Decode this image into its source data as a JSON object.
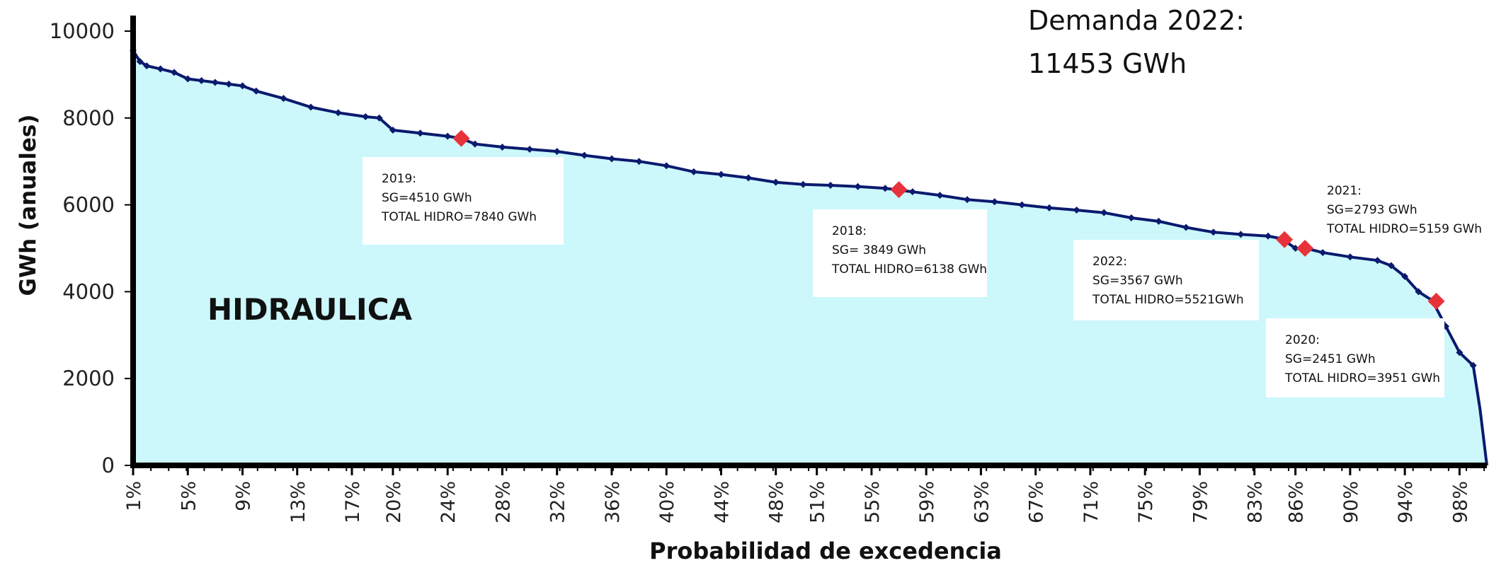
{
  "chart_data": {
    "type": "area",
    "title": "",
    "xlabel": "Probabilidad de excedencia",
    "ylabel": "GWh (anuales)",
    "ylim": [
      0,
      10000
    ],
    "xlim": [
      1,
      100
    ],
    "yticks": [
      0,
      2000,
      4000,
      6000,
      8000,
      10000
    ],
    "xtick_labels": [
      "1%",
      "5%",
      "9%",
      "13%",
      "17%",
      "20%",
      "24%",
      "28%",
      "32%",
      "36%",
      "40%",
      "44%",
      "48%",
      "51%",
      "55%",
      "59%",
      "63%",
      "67%",
      "71%",
      "75%",
      "79%",
      "83%",
      "86%",
      "90%",
      "94%",
      "98%"
    ],
    "xtick_values": [
      1,
      5,
      9,
      13,
      17,
      20,
      24,
      28,
      32,
      36,
      40,
      44,
      48,
      51,
      55,
      59,
      63,
      67,
      71,
      75,
      79,
      83,
      86,
      90,
      94,
      98
    ],
    "fill_label": "HIDRAULICA",
    "demand_line1": "Demanda 2022:",
    "demand_line2": "11453 GWh",
    "fill_color": "#ccf7fb",
    "line_color": "#0a1a6e",
    "marker_color": "#e8323a",
    "series": [
      {
        "x": [
          1,
          1.5,
          2,
          3,
          4,
          5,
          6,
          7,
          8,
          9,
          10,
          12,
          14,
          16,
          18,
          19,
          20,
          22,
          24,
          25,
          26,
          28,
          30,
          32,
          34,
          36,
          38,
          40,
          42,
          44,
          46,
          48,
          50,
          52,
          54,
          56,
          58,
          60,
          62,
          64,
          66,
          68,
          70,
          72,
          74,
          76,
          78,
          80,
          82,
          84,
          85,
          86,
          87,
          88,
          90,
          92,
          93,
          94,
          95,
          96,
          97,
          98,
          99,
          99.5,
          100
        ],
        "y": [
          9550,
          9300,
          9200,
          9130,
          9050,
          8900,
          8860,
          8820,
          8780,
          8740,
          8620,
          8450,
          8250,
          8120,
          8030,
          8000,
          7720,
          7650,
          7580,
          7530,
          7400,
          7330,
          7280,
          7230,
          7140,
          7060,
          7000,
          6900,
          6760,
          6700,
          6620,
          6520,
          6470,
          6450,
          6420,
          6380,
          6300,
          6220,
          6120,
          6070,
          6000,
          5930,
          5880,
          5820,
          5700,
          5620,
          5480,
          5370,
          5320,
          5280,
          5220,
          5000,
          4980,
          4900,
          4800,
          4720,
          4600,
          4350,
          4000,
          3800,
          3200,
          2600,
          2300,
          1300,
          0
        ]
      }
    ],
    "highlights": [
      {
        "x": 25,
        "y": 7530,
        "title": "2019:",
        "line2": "SG=4510 GWh",
        "line3": "TOTAL HIDRO=7840 GWh"
      },
      {
        "x": 57,
        "y": 6350,
        "title": "2018:",
        "line2": "SG= 3849 GWh",
        "line3": "TOTAL HIDRO=6138 GWh"
      },
      {
        "x": 85.2,
        "y": 5200,
        "title": "2022:",
        "line2": "SG=3567 GWh",
        "line3": "TOTAL HIDRO=5521GWh"
      },
      {
        "x": 86.7,
        "y": 5000,
        "title": "2021:",
        "line2": "SG=2793 GWh",
        "line3": "TOTAL HIDRO=5159 GWh"
      },
      {
        "x": 96.3,
        "y": 3780,
        "title": "2020:",
        "line2": "SG=2451 GWh",
        "line3": "TOTAL HIDRO=3951 GWh"
      }
    ]
  }
}
